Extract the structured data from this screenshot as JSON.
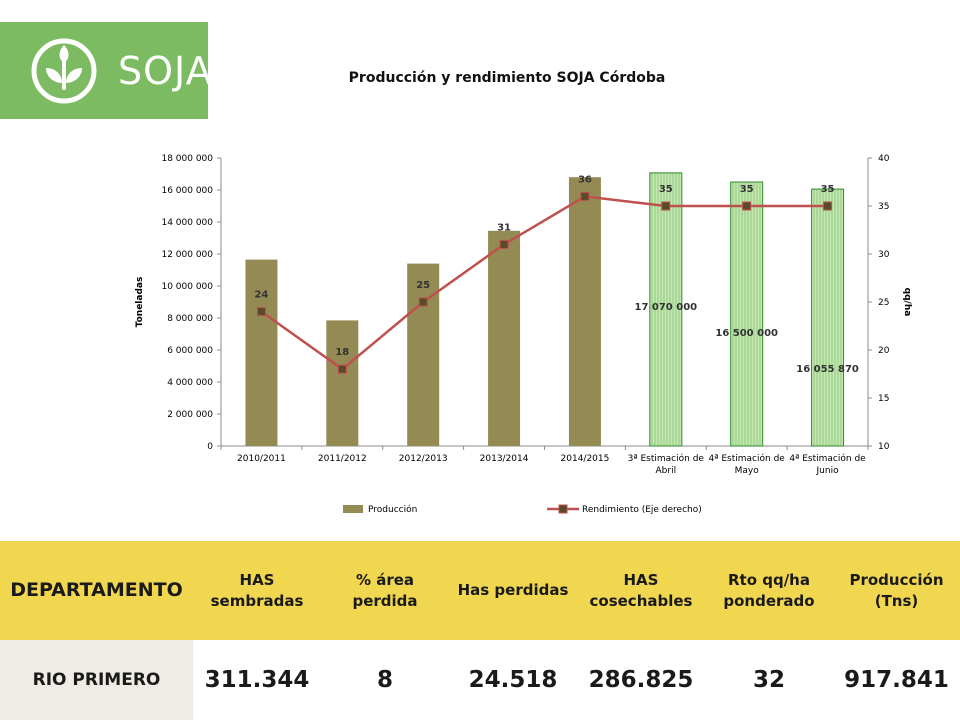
{
  "logo": {
    "text": "SOJA"
  },
  "chart_data": {
    "type": "bar",
    "title": "Producción y rendimiento SOJA Córdoba",
    "categories": [
      "2010/2011",
      "2011/2012",
      "2012/2013",
      "2013/2014",
      "2014/2015",
      "3ª Estimación de Abril",
      "4ª Estimación de Mayo",
      "4ª Estimación de Junio"
    ],
    "category_lines": [
      [
        "2010/2011"
      ],
      [
        "2011/2012"
      ],
      [
        "2012/2013"
      ],
      [
        "2013/2014"
      ],
      [
        "2014/2015"
      ],
      [
        "3ª Estimación de",
        "Abril"
      ],
      [
        "4ª Estimación de",
        "Mayo"
      ],
      [
        "4ª Estimación de",
        "Junio"
      ]
    ],
    "series": [
      {
        "name": "Producción",
        "type": "bar",
        "axis": "left",
        "values": [
          11650000,
          7850000,
          11400000,
          13450000,
          16800000,
          17070000,
          16500000,
          16055870
        ],
        "estimate_flags": [
          false,
          false,
          false,
          false,
          false,
          true,
          true,
          true
        ],
        "data_labels": [
          "",
          "",
          "",
          "",
          "",
          "17 070 000",
          "16 500 000",
          "16 055 870"
        ]
      },
      {
        "name": "Rendimiento (Eje derecho)",
        "type": "line",
        "axis": "right",
        "values": [
          24,
          18,
          25,
          31,
          36,
          35,
          35,
          35
        ],
        "data_labels": [
          "24",
          "18",
          "25",
          "31",
          "36",
          "35",
          "35",
          "35"
        ]
      }
    ],
    "ylabel": "Toneladas",
    "y2label": "qq/ha",
    "ylim": [
      0,
      18000000
    ],
    "y_ticks": [
      0,
      2000000,
      4000000,
      6000000,
      8000000,
      10000000,
      12000000,
      14000000,
      16000000,
      18000000
    ],
    "y_tick_labels": [
      "0",
      "2 000 000",
      "4 000 000",
      "6 000 000",
      "8 000 000",
      "10 000 000",
      "12 000 000",
      "14 000 000",
      "16 000 000",
      "18 000 000"
    ],
    "y2lim": [
      10,
      40
    ],
    "y2_ticks": [
      10,
      15,
      20,
      25,
      30,
      35,
      40
    ],
    "y2_tick_labels": [
      "10",
      "15",
      "20",
      "25",
      "30",
      "35",
      "40"
    ],
    "legend_position": "bottom",
    "grid": false,
    "colors": {
      "bar": "#948a54",
      "bar_estimate_fill": "#c6e6b4",
      "bar_estimate_stroke": "#2d8a2d",
      "line": "#c0504d",
      "marker": "#5a4a2a"
    }
  },
  "table": {
    "headers": [
      "DEPARTAMENTO",
      "HAS sembradas",
      "% área perdida",
      "Has perdidas",
      "HAS cosechables",
      "Rto qq/ha ponderado",
      "Producción (Tns)"
    ],
    "header_lines": [
      [
        "DEPARTAMENTO"
      ],
      [
        "HAS",
        "sembradas"
      ],
      [
        "% área",
        "perdida"
      ],
      [
        "Has perdidas"
      ],
      [
        "HAS",
        "cosechables"
      ],
      [
        "Rto qq/ha",
        "ponderado"
      ],
      [
        "Producción",
        "(Tns)"
      ]
    ],
    "rows": [
      [
        "RIO PRIMERO",
        "311.344",
        "8",
        "24.518",
        "286.825",
        "32",
        "917.841"
      ]
    ]
  }
}
